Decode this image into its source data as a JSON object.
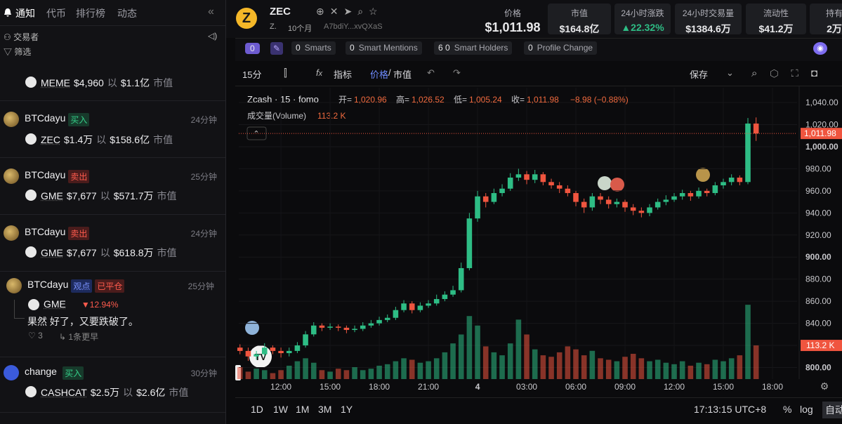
{
  "sidebar": {
    "tabs": [
      "通知",
      "代币",
      "排行榜",
      "动态"
    ],
    "filters": [
      "交易者",
      "筛选"
    ],
    "with": "以",
    "mcap_label": "市值",
    "feed": [
      {
        "token": "MEME",
        "price": "$4,960",
        "mcap": "$1.1亿"
      },
      {
        "user": "BTCdayu",
        "badges": [
          "买入"
        ],
        "time": "24分钟",
        "token": "ZEC",
        "price": "$1.4万",
        "mcap": "$158.6亿"
      },
      {
        "user": "BTCdayu",
        "badges": [
          "卖出"
        ],
        "time": "25分钟",
        "token": "GME",
        "price": "$7,677",
        "mcap": "$571.7万"
      },
      {
        "user": "BTCdayu",
        "badges": [
          "卖出"
        ],
        "time": "24分钟",
        "token": "GME",
        "price": "$7,677",
        "mcap": "$618.8万"
      },
      {
        "user": "BTCdayu",
        "badges": [
          "观点",
          "已平仓"
        ],
        "time": "25分钟",
        "token": "GME",
        "change": "▼12.94%",
        "comment": "果然 好了，又要跌破了。",
        "likes": 3,
        "more": "1条更早"
      },
      {
        "user": "change",
        "badges": [
          "买入"
        ],
        "time": "30分钟",
        "token": "CASHCAT",
        "price": "$2.5万",
        "mcap": "$2.6亿"
      }
    ]
  },
  "token": {
    "symbol": "ZEC",
    "short": "Z.",
    "age": "10个月",
    "address": "A7bdiY...xvQXaS"
  },
  "stats": [
    {
      "label": "价格",
      "value": "$1,011.98"
    },
    {
      "label": "市值",
      "value": "$164.8亿"
    },
    {
      "label": "24小时涨跌",
      "value": "▲22.32%"
    },
    {
      "label": "24小时交易量",
      "value": "$1384.6万"
    },
    {
      "label": "流动性",
      "value": "$41.2万"
    },
    {
      "label": "持有",
      "value": "2万"
    }
  ],
  "tags": {
    "count": "0",
    "items": [
      {
        "n": "0",
        "label": "Smarts"
      },
      {
        "n": "0",
        "label": "Smart Mentions"
      },
      {
        "n": "6 0",
        "label": "Smart Holders"
      },
      {
        "n": "0",
        "label": "Profile Change"
      }
    ]
  },
  "toolbar": {
    "interval": "15分",
    "indicators": "指标",
    "price": "价格",
    "divider": "/",
    "mcap": "市值",
    "save": "保存"
  },
  "bottom": {
    "ranges": [
      "1D",
      "1W",
      "1M",
      "3M",
      "1Y"
    ],
    "clock": "17:13:15 UTC+8",
    "percent": "%",
    "log": "log",
    "auto": "自动"
  },
  "chart_data": {
    "type": "candlestick",
    "title": "Zcash · 15 · fomo",
    "ohlc_labels": [
      "开=",
      "高=",
      "低=",
      "收="
    ],
    "legend_values": [
      "1,020.96",
      "1,026.52",
      "1,005.24",
      "1,011.98"
    ],
    "change": "−8.98 (−0.88%)",
    "volume_name": "成交量(Volume)",
    "volume_label": "113.2 K",
    "last_price_label": "1,011.98",
    "up_color": "#2ebd85",
    "down_color": "#f0553f",
    "xlim": [
      -0.15,
      68
    ],
    "xticks": [
      {
        "value": 5,
        "label": "12:00"
      },
      {
        "value": 11,
        "label": "15:00"
      },
      {
        "value": 17,
        "label": "18:00"
      },
      {
        "value": 23,
        "label": "21:00"
      },
      {
        "value": 29,
        "label": "4"
      },
      {
        "value": 35,
        "label": "03:00"
      },
      {
        "value": 41,
        "label": "06:00"
      },
      {
        "value": 47,
        "label": "09:00"
      },
      {
        "value": 53,
        "label": "12:00"
      },
      {
        "value": 59,
        "label": "15:00"
      },
      {
        "value": 65,
        "label": "18:00"
      }
    ],
    "ylim": [
      789.5,
      1053.4
    ],
    "yticks": [
      {
        "value": 800,
        "label": "800.00"
      },
      {
        "value": 820,
        "label": "820.00"
      },
      {
        "value": 840,
        "label": "840.00"
      },
      {
        "value": 860,
        "label": "860.00"
      },
      {
        "value": 880,
        "label": "880.00"
      },
      {
        "value": 900,
        "label": "900.00"
      },
      {
        "value": 920,
        "label": "920.00"
      },
      {
        "value": 940,
        "label": "940.00"
      },
      {
        "value": 960,
        "label": "960.00"
      },
      {
        "value": 980,
        "label": "980.00"
      },
      {
        "value": 1000,
        "label": "1,000.00"
      },
      {
        "value": 1020,
        "label": "1,020.00"
      },
      {
        "value": 1040,
        "label": "1,040.00"
      }
    ],
    "vlim": [
      0,
      980
    ],
    "open": [
      818,
      815,
      810,
      812,
      818,
      815,
      813,
      815,
      820,
      830,
      838,
      836,
      837,
      836,
      834,
      835,
      838,
      840,
      843,
      845,
      852,
      858,
      852,
      856,
      858,
      862,
      866,
      870,
      890,
      935,
      955,
      950,
      958,
      962,
      972,
      975,
      970,
      975,
      968,
      965,
      962,
      958,
      950,
      945,
      955,
      952,
      948,
      950,
      945,
      942,
      940,
      945,
      950,
      952,
      955,
      958,
      955,
      960,
      958,
      965,
      968,
      972,
      968,
      1020.96
    ],
    "high": [
      821,
      818,
      815,
      822,
      820,
      818,
      818,
      823,
      833,
      841,
      840,
      840,
      839,
      838,
      838,
      841,
      843,
      846,
      848,
      855,
      861,
      860,
      859,
      861,
      866,
      869,
      874,
      895,
      940,
      960,
      958,
      962,
      966,
      976,
      980,
      978,
      979,
      977,
      971,
      968,
      965,
      960,
      953,
      958,
      958,
      955,
      953,
      952,
      948,
      945,
      948,
      953,
      956,
      958,
      961,
      960,
      963,
      962,
      968,
      971,
      975,
      974,
      1026,
      1026.52
    ],
    "low": [
      812,
      806,
      807,
      810,
      812,
      809,
      810,
      813,
      818,
      828,
      833,
      834,
      833,
      831,
      832,
      833,
      836,
      838,
      841,
      843,
      850,
      849,
      850,
      854,
      856,
      860,
      864,
      868,
      888,
      932,
      945,
      948,
      955,
      960,
      969,
      966,
      967,
      965,
      962,
      958,
      955,
      946,
      940,
      942,
      948,
      944,
      945,
      941,
      938,
      936,
      937,
      943,
      947,
      950,
      952,
      951,
      953,
      955,
      956,
      962,
      965,
      965,
      966,
      1005.24
    ],
    "close": [
      815,
      810,
      812,
      818,
      815,
      813,
      815,
      820,
      830,
      838,
      836,
      837,
      836,
      834,
      835,
      838,
      840,
      843,
      845,
      852,
      858,
      852,
      856,
      858,
      862,
      866,
      870,
      890,
      935,
      955,
      950,
      958,
      962,
      972,
      975,
      970,
      975,
      968,
      965,
      962,
      958,
      950,
      945,
      955,
      952,
      948,
      950,
      945,
      942,
      940,
      945,
      950,
      952,
      955,
      958,
      955,
      960,
      958,
      965,
      968,
      972,
      968,
      1020.96,
      1011.98
    ],
    "volume": [
      40,
      25,
      35,
      30,
      20,
      30,
      45,
      60,
      70,
      55,
      30,
      25,
      35,
      30,
      40,
      30,
      35,
      45,
      50,
      60,
      70,
      65,
      55,
      60,
      70,
      90,
      120,
      150,
      212,
      180,
      110,
      90,
      80,
      120,
      200,
      150,
      100,
      80,
      75,
      90,
      110,
      100,
      80,
      95,
      70,
      65,
      60,
      75,
      85,
      70,
      60,
      65,
      55,
      50,
      60,
      45,
      55,
      50,
      65,
      60,
      70,
      80,
      250,
      113.2
    ]
  }
}
